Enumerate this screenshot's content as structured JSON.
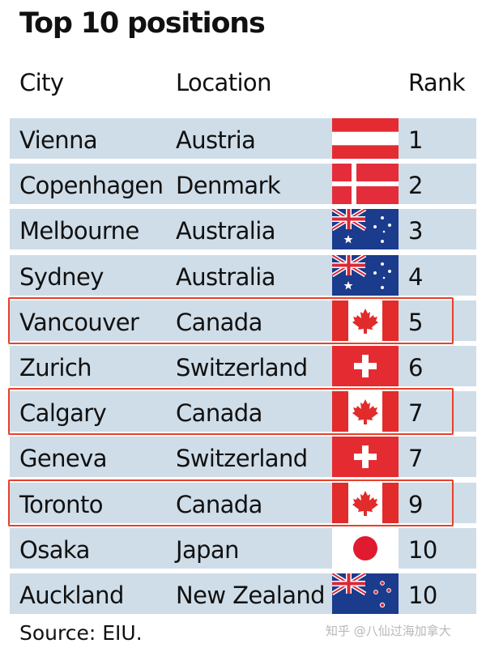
{
  "title": "Top 10 positions",
  "headers": {
    "city": "City",
    "location": "Location",
    "rank": "Rank"
  },
  "chart_data": {
    "type": "table",
    "columns": [
      "City",
      "Location",
      "Rank"
    ],
    "rows": [
      {
        "city": "Vienna",
        "location": "Austria",
        "flag": "austria-flag-icon",
        "rank": "1"
      },
      {
        "city": "Copenhagen",
        "location": "Denmark",
        "flag": "denmark-flag-icon",
        "rank": "2"
      },
      {
        "city": "Melbourne",
        "location": "Australia",
        "flag": "australia-flag-icon",
        "rank": "3"
      },
      {
        "city": "Sydney",
        "location": "Australia",
        "flag": "australia-flag-icon",
        "rank": "4"
      },
      {
        "city": "Vancouver",
        "location": "Canada",
        "flag": "canada-flag-icon",
        "rank": "5",
        "highlighted": true
      },
      {
        "city": "Zurich",
        "location": "Switzerland",
        "flag": "switzerland-flag-icon",
        "rank": "6"
      },
      {
        "city": "Calgary",
        "location": "Canada",
        "flag": "canada-flag-icon",
        "rank": "7",
        "highlighted": true
      },
      {
        "city": "Geneva",
        "location": "Switzerland",
        "flag": "switzerland-flag-icon",
        "rank": "7"
      },
      {
        "city": "Toronto",
        "location": "Canada",
        "flag": "canada-flag-icon",
        "rank": "9",
        "highlighted": true
      },
      {
        "city": "Osaka",
        "location": "Japan",
        "flag": "japan-flag-icon",
        "rank": "10"
      },
      {
        "city": "Auckland",
        "location": "New Zealand",
        "flag": "new-zealand-flag-icon",
        "rank": "10"
      }
    ]
  },
  "source": "Source: EIU.",
  "watermark": "知乎 @八仙过海加拿大",
  "colors": {
    "row_background": "#cfdde8",
    "highlight_border": "#e8402a"
  }
}
